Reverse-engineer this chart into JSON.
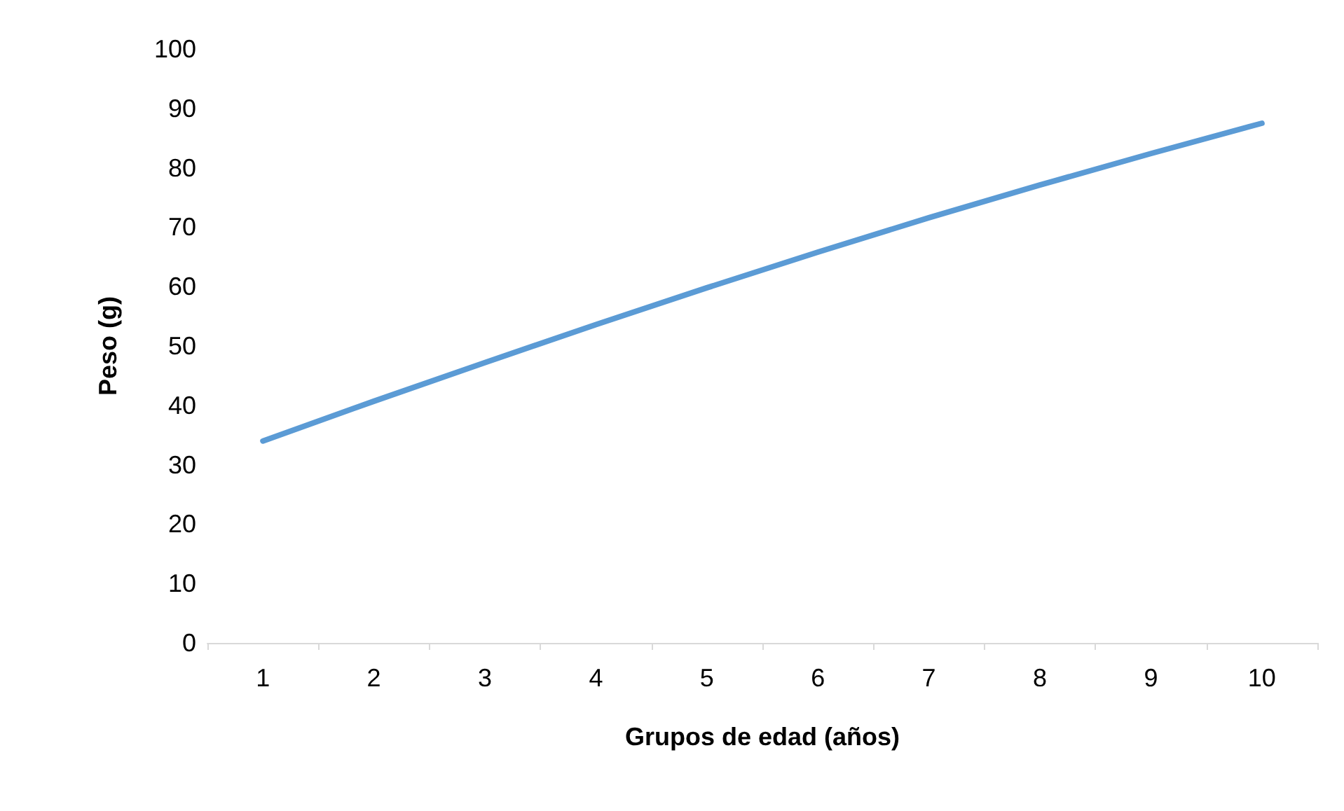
{
  "chart_data": {
    "type": "line",
    "xlabel": "Grupos de edad (años)",
    "ylabel": "Peso (g)",
    "categories": [
      "1",
      "2",
      "3",
      "4",
      "5",
      "6",
      "7",
      "8",
      "9",
      "10"
    ],
    "series": [
      {
        "color": "#5b9bd5",
        "values": [
          34,
          40.7,
          47.2,
          53.6,
          59.8,
          65.8,
          71.6,
          77.1,
          82.4,
          87.5
        ]
      }
    ],
    "ylim": [
      0,
      100
    ],
    "yticks": [
      0,
      10,
      20,
      30,
      40,
      50,
      60,
      70,
      80,
      90,
      100
    ],
    "grid": false,
    "marker": "none",
    "line_style": "solid"
  }
}
